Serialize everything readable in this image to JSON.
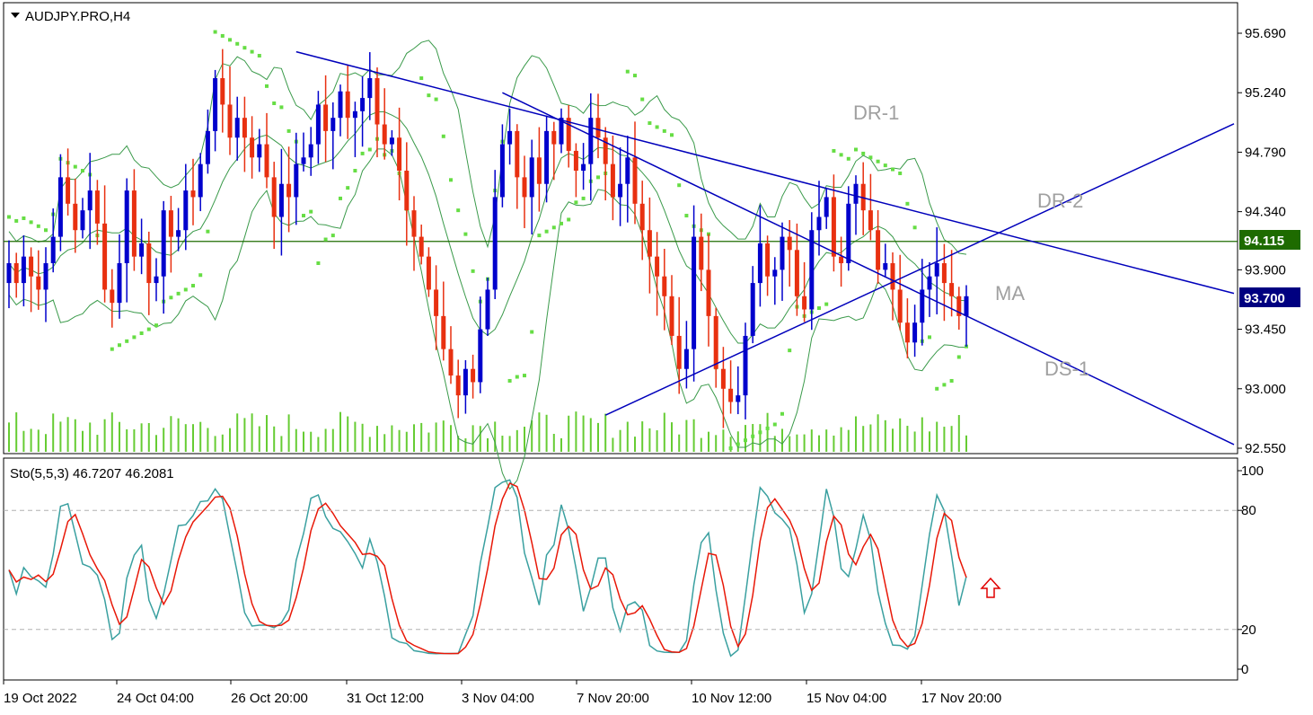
{
  "chart_data": {
    "type": "candlestick",
    "symbol_label": "AUDJPY.PRO,H4",
    "price_axis": {
      "range": [
        92.55,
        95.69
      ],
      "ticks": [
        95.69,
        95.24,
        94.79,
        94.34,
        93.9,
        93.45,
        93.0,
        92.55
      ],
      "tick_labels": [
        "95.690",
        "95.240",
        "94.790",
        "94.340",
        "93.900",
        "93.450",
        "93.000",
        "92.550"
      ]
    },
    "horizontal_level": {
      "value": 94.115,
      "label": "94.115",
      "color": "#1e6b00"
    },
    "current_price": {
      "value": 93.7,
      "label": "93.700",
      "color": "#000080"
    },
    "x_axis": {
      "tick_labels": [
        "19 Oct 2022",
        "24 Oct 04:00",
        "26 Oct 20:00",
        "31 Oct 12:00",
        "3 Nov 04:00",
        "7 Nov 20:00",
        "10 Nov 12:00",
        "15 Nov 04:00",
        "17 Nov 20:00"
      ]
    },
    "annotations": [
      {
        "label": "DR-1"
      },
      {
        "label": "DR-2"
      },
      {
        "label": "MA"
      },
      {
        "label": "DS-1"
      }
    ],
    "trendlines": [
      {
        "name_ref": "DR-1",
        "start": [
          39,
          95.55
        ],
        "end": [
          117,
          94.43
        ]
      },
      {
        "name_ref": "DR-2",
        "start": [
          67,
          95.24
        ],
        "end": [
          117,
          93.9
        ]
      },
      {
        "name_ref": "DS-1",
        "start": [
          81,
          92.8
        ],
        "end": [
          117,
          93.73
        ]
      }
    ],
    "close_series": [
      93.95,
      93.8,
      94.0,
      93.85,
      93.75,
      93.95,
      94.15,
      94.6,
      94.4,
      94.2,
      94.35,
      94.5,
      94.25,
      93.75,
      93.65,
      93.95,
      94.5,
      94.0,
      94.1,
      93.8,
      93.85,
      94.35,
      94.15,
      94.2,
      94.5,
      94.45,
      94.7,
      94.95,
      95.35,
      95.15,
      94.9,
      95.05,
      94.9,
      94.75,
      94.85,
      94.6,
      94.3,
      94.55,
      94.45,
      94.7,
      94.75,
      94.85,
      95.15,
      94.95,
      95.05,
      95.25,
      95.05,
      95.1,
      95.2,
      95.35,
      95.0,
      94.85,
      94.9,
      94.65,
      94.35,
      94.15,
      94.0,
      93.75,
      93.55,
      93.3,
      93.1,
      92.95,
      93.15,
      93.05,
      93.45,
      93.75,
      94.45,
      94.85,
      94.95,
      94.6,
      94.45,
      94.75,
      94.55,
      94.95,
      94.85,
      95.05,
      94.8,
      94.65,
      94.7,
      95.05,
      94.9,
      94.7,
      94.45,
      94.55,
      94.75,
      94.4,
      94.2,
      94.0,
      93.85,
      93.7,
      93.4,
      93.15,
      93.3,
      94.15,
      93.9,
      93.55,
      93.15,
      93.0,
      92.9,
      92.95,
      93.4,
      93.8,
      94.1,
      93.85,
      93.9,
      94.15,
      94.05,
      93.7,
      93.6,
      94.2,
      94.3,
      94.45,
      94.0,
      93.95,
      94.4,
      94.55,
      94.35,
      94.2,
      93.9,
      93.95,
      93.75,
      93.5,
      93.35,
      93.5,
      93.75,
      93.85,
      93.95,
      93.8,
      93.7,
      93.55,
      93.7
    ],
    "indicators": {
      "stochastic": {
        "label": "Sto(5,5,3) 46.7207 46.2081",
        "main_value": 46.7207,
        "signal_value": 46.2081,
        "range": [
          0,
          100
        ],
        "levels": [
          20,
          80
        ],
        "tick_labels": [
          "100",
          "80",
          "20",
          "0"
        ]
      },
      "bollinger_bands": true,
      "parabolic_sar": true,
      "volume": true
    },
    "arrow": {
      "direction": "up",
      "color": "#e00000"
    },
    "colors": {
      "bull": "#0000cc",
      "bear": "#e83010",
      "band": "#3a9a4a",
      "sar": "#66dd44",
      "volume": "#66cc33",
      "trendline": "#0000bb",
      "sto_main": "#3aa0a0",
      "sto_signal": "#e81808",
      "axis": "#000000"
    }
  }
}
